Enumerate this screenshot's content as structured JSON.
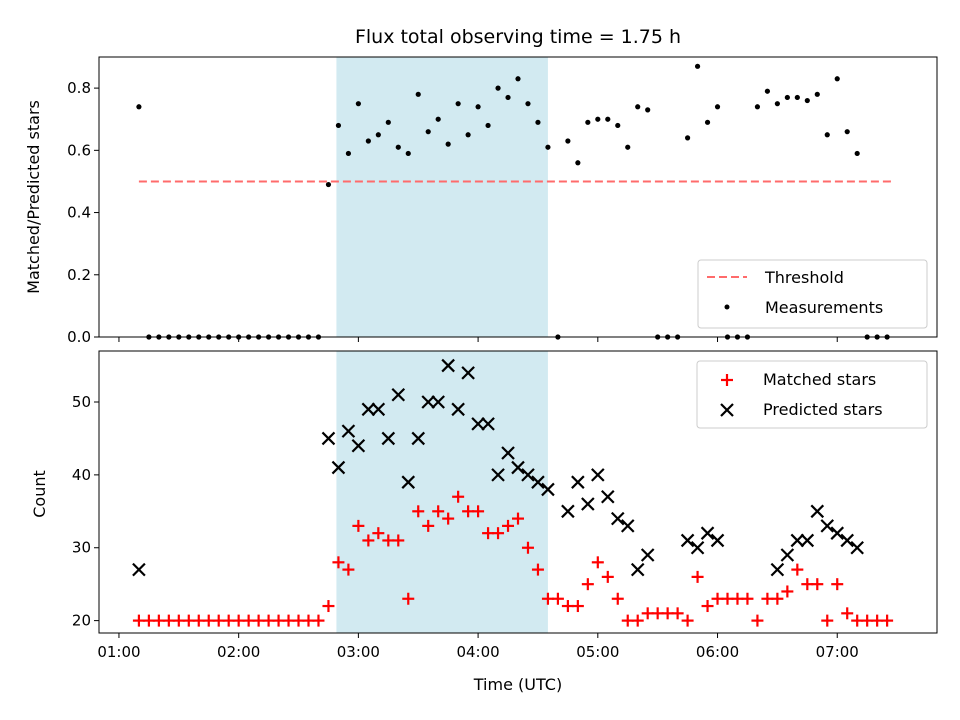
{
  "chart_data": [
    {
      "type": "scatter",
      "title": "Flux total observing time = 1.75 h",
      "xlabel": "",
      "ylabel": "Matched/Predicted stars",
      "ylim": [
        0,
        0.9
      ],
      "xlim": [
        "00:50",
        "07:50"
      ],
      "yticks": [
        "0.0",
        "0.2",
        "0.4",
        "0.6",
        "0.8"
      ],
      "grid": false,
      "legend_location": "lower-right",
      "highlight_region": {
        "start": "02:49",
        "end": "04:35",
        "color": "#add8e6"
      },
      "threshold": {
        "name": "Threshold",
        "y": 0.5,
        "x_start": "01:10",
        "x_end": "07:28",
        "color": "#ff6b6b",
        "style": "dashed"
      },
      "series": [
        {
          "name": "Measurements",
          "marker": "dot",
          "color": "#000000",
          "x": [
            "01:10",
            "01:15",
            "01:20",
            "01:25",
            "01:30",
            "01:35",
            "01:40",
            "01:45",
            "01:50",
            "01:55",
            "02:00",
            "02:05",
            "02:10",
            "02:15",
            "02:20",
            "02:25",
            "02:30",
            "02:35",
            "02:40",
            "02:45",
            "02:50",
            "02:55",
            "03:00",
            "03:05",
            "03:10",
            "03:15",
            "03:20",
            "03:25",
            "03:30",
            "03:35",
            "03:40",
            "03:45",
            "03:50",
            "03:55",
            "04:00",
            "04:05",
            "04:10",
            "04:15",
            "04:20",
            "04:25",
            "04:30",
            "04:35",
            "04:40",
            "04:45",
            "04:50",
            "04:55",
            "05:00",
            "05:05",
            "05:10",
            "05:15",
            "05:20",
            "05:25",
            "05:30",
            "05:35",
            "05:40",
            "05:45",
            "05:50",
            "05:55",
            "06:00",
            "06:05",
            "06:10",
            "06:15",
            "06:20",
            "06:25",
            "06:30",
            "06:35",
            "06:40",
            "06:45",
            "06:50",
            "06:55",
            "07:00",
            "07:05",
            "07:10",
            "07:15",
            "07:20",
            "07:25"
          ],
          "y": [
            0.74,
            0.0,
            0.0,
            0.0,
            0.0,
            0.0,
            0.0,
            0.0,
            0.0,
            0.0,
            0.0,
            0.0,
            0.0,
            0.0,
            0.0,
            0.0,
            0.0,
            0.0,
            0.0,
            0.49,
            0.68,
            0.59,
            0.75,
            0.63,
            0.65,
            0.69,
            0.61,
            0.59,
            0.78,
            0.66,
            0.7,
            0.62,
            0.75,
            0.65,
            0.74,
            0.68,
            0.8,
            0.77,
            0.83,
            0.75,
            0.69,
            0.61,
            0.0,
            0.63,
            0.56,
            0.69,
            0.7,
            0.7,
            0.68,
            0.61,
            0.74,
            0.73,
            0.0,
            0.0,
            0.0,
            0.64,
            0.87,
            0.69,
            0.74,
            0.0,
            0.0,
            0.0,
            0.74,
            0.79,
            0.75,
            0.77,
            0.77,
            0.76,
            0.78,
            0.65,
            0.83,
            0.66,
            0.59,
            0.0,
            0.0,
            0.0
          ]
        }
      ]
    },
    {
      "type": "scatter",
      "title": "",
      "xlabel": "Time (UTC)",
      "ylabel": "Count",
      "ylim": [
        18.3,
        57
      ],
      "xlim": [
        "00:50",
        "07:50"
      ],
      "xticks": [
        "01:00",
        "02:00",
        "03:00",
        "04:00",
        "05:00",
        "06:00",
        "07:00"
      ],
      "yticks": [
        "20",
        "30",
        "40",
        "50"
      ],
      "grid": false,
      "legend_location": "upper-right",
      "highlight_region": {
        "start": "02:49",
        "end": "04:35",
        "color": "#add8e6"
      },
      "series": [
        {
          "name": "Matched stars",
          "marker": "plus",
          "color": "#ff0000",
          "x": [
            "01:10",
            "01:15",
            "01:20",
            "01:25",
            "01:30",
            "01:35",
            "01:40",
            "01:45",
            "01:50",
            "01:55",
            "02:00",
            "02:05",
            "02:10",
            "02:15",
            "02:20",
            "02:25",
            "02:30",
            "02:35",
            "02:40",
            "02:45",
            "02:50",
            "02:55",
            "03:00",
            "03:05",
            "03:10",
            "03:15",
            "03:20",
            "03:25",
            "03:30",
            "03:35",
            "03:40",
            "03:45",
            "03:50",
            "03:55",
            "04:00",
            "04:05",
            "04:10",
            "04:15",
            "04:20",
            "04:25",
            "04:30",
            "04:35",
            "04:40",
            "04:45",
            "04:50",
            "04:55",
            "05:00",
            "05:05",
            "05:10",
            "05:15",
            "05:20",
            "05:25",
            "05:30",
            "05:35",
            "05:40",
            "05:45",
            "05:50",
            "05:55",
            "06:00",
            "06:05",
            "06:10",
            "06:15",
            "06:20",
            "06:25",
            "06:30",
            "06:35",
            "06:40",
            "06:45",
            "06:50",
            "06:55",
            "07:00",
            "07:05",
            "07:10",
            "07:15",
            "07:20",
            "07:25"
          ],
          "y": [
            20,
            20,
            20,
            20,
            20,
            20,
            20,
            20,
            20,
            20,
            20,
            20,
            20,
            20,
            20,
            20,
            20,
            20,
            20,
            22,
            28,
            27,
            33,
            31,
            32,
            31,
            31,
            23,
            35,
            33,
            35,
            34,
            37,
            35,
            35,
            32,
            32,
            33,
            34,
            30,
            27,
            23,
            23,
            22,
            22,
            25,
            28,
            26,
            23,
            20,
            20,
            21,
            21,
            21,
            21,
            20,
            26,
            22,
            23,
            23,
            23,
            23,
            20,
            23,
            23,
            24,
            27,
            25,
            25,
            20,
            25,
            21,
            20,
            20,
            20,
            20
          ]
        },
        {
          "name": "Predicted stars",
          "marker": "x",
          "color": "#000000",
          "x": [
            "01:10",
            "02:45",
            "02:50",
            "02:55",
            "03:00",
            "03:05",
            "03:10",
            "03:15",
            "03:20",
            "03:25",
            "03:30",
            "03:35",
            "03:40",
            "03:45",
            "03:50",
            "03:55",
            "04:00",
            "04:05",
            "04:10",
            "04:15",
            "04:20",
            "04:25",
            "04:30",
            "04:35",
            "04:45",
            "04:50",
            "04:55",
            "05:00",
            "05:05",
            "05:10",
            "05:15",
            "05:20",
            "05:25",
            "05:45",
            "05:50",
            "05:55",
            "06:00",
            "06:30",
            "06:35",
            "06:40",
            "06:45",
            "06:50",
            "06:55",
            "07:00",
            "07:05",
            "07:10"
          ],
          "y": [
            27,
            45,
            41,
            46,
            44,
            49,
            49,
            45,
            51,
            39,
            45,
            50,
            50,
            55,
            49,
            54,
            47,
            47,
            40,
            43,
            41,
            40,
            39,
            38,
            35,
            39,
            36,
            40,
            37,
            34,
            33,
            27,
            29,
            31,
            30,
            32,
            31,
            27,
            29,
            31,
            31,
            35,
            33,
            32,
            31,
            30
          ]
        }
      ]
    }
  ]
}
